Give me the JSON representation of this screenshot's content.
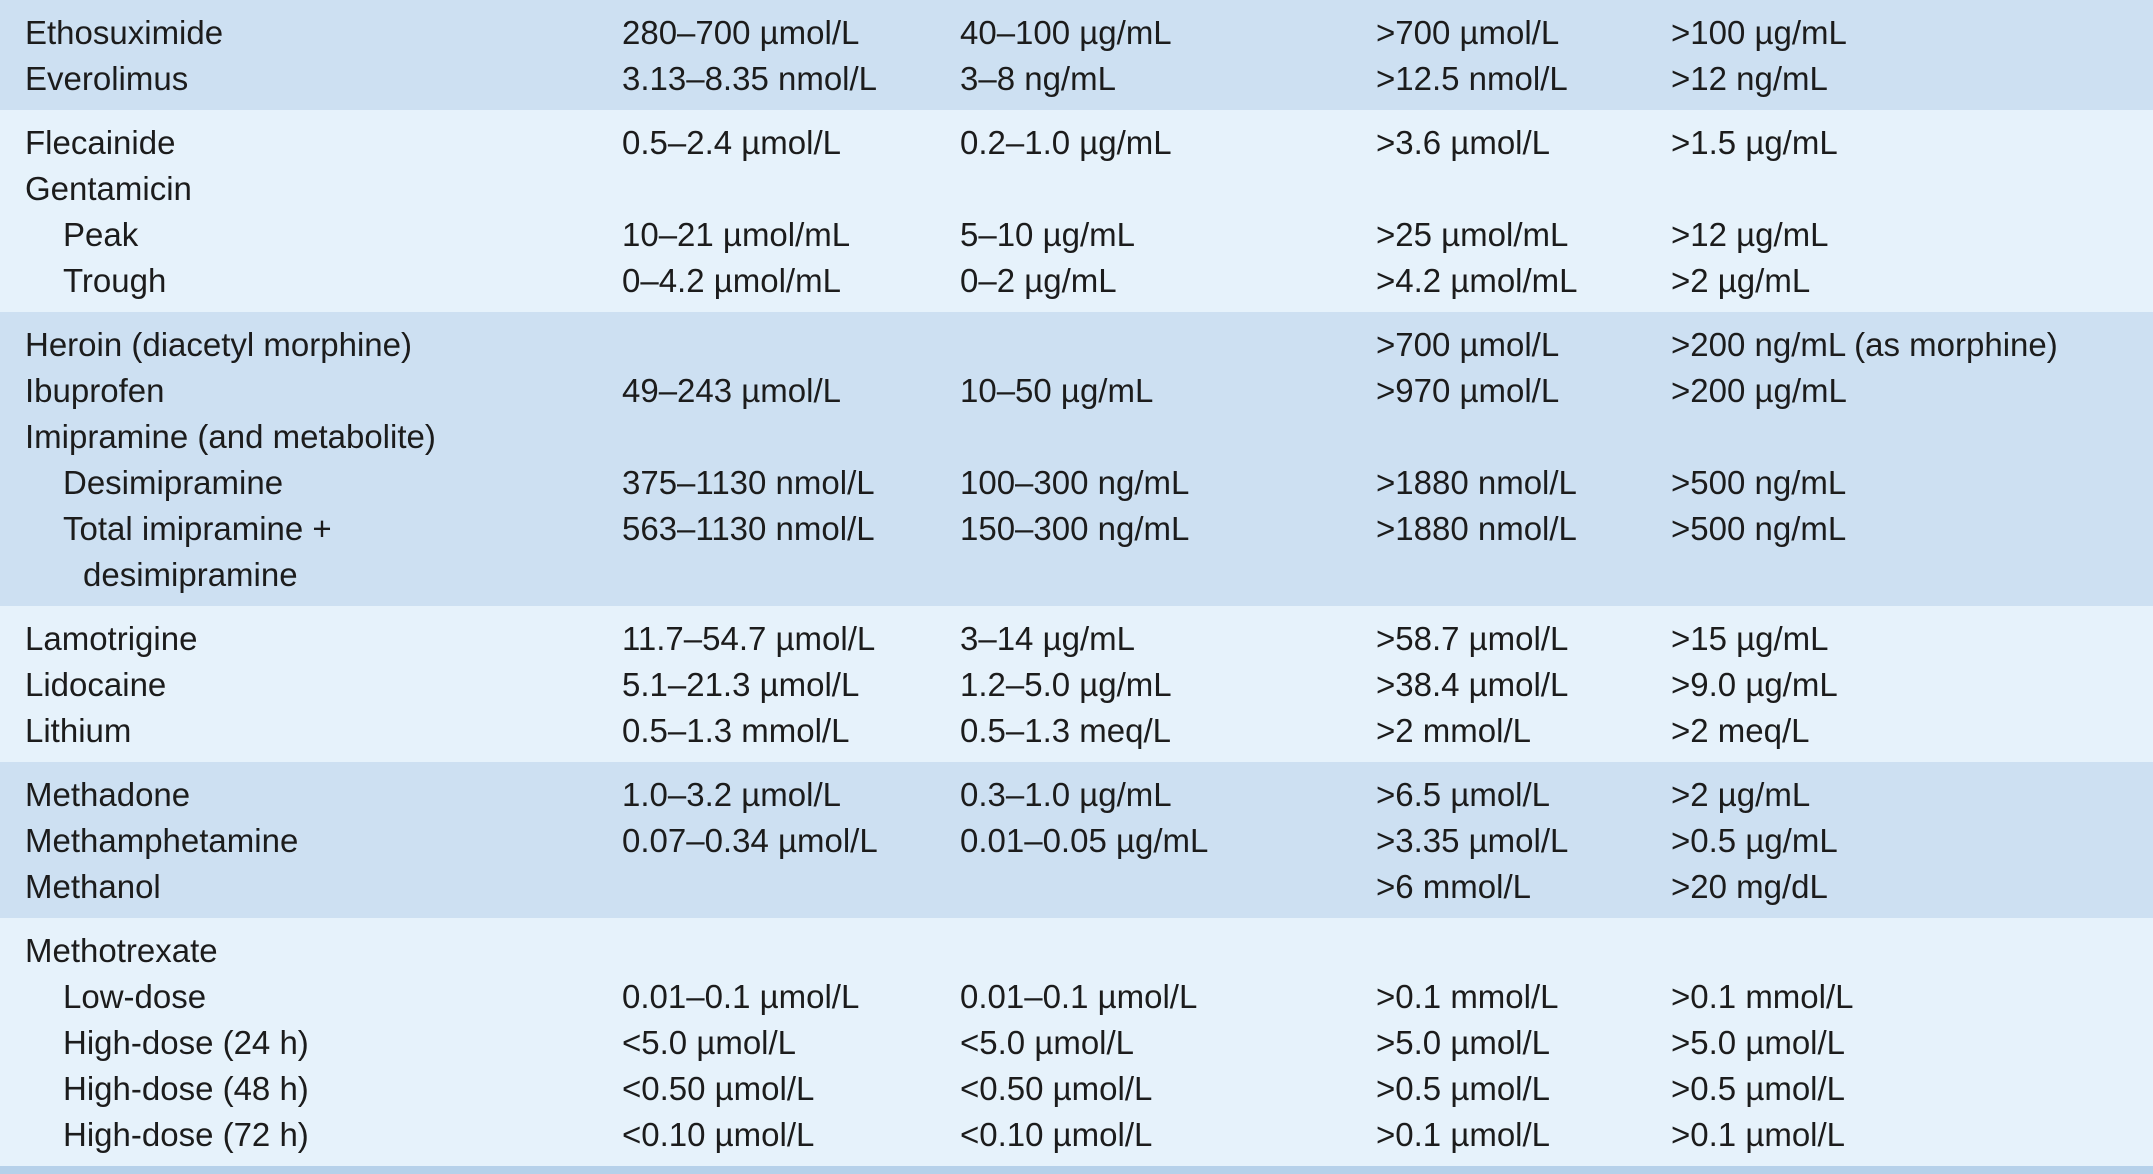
{
  "table": {
    "groups": [
      {
        "rows": [
          {
            "indent": 0,
            "cells": [
              "Ethosuximide",
              "280–700 µmol/L",
              "40–100 µg/mL",
              ">700 µmol/L",
              ">100 µg/mL"
            ]
          },
          {
            "indent": 0,
            "cells": [
              "Everolimus",
              "3.13–8.35 nmol/L",
              "3–8 ng/mL",
              ">12.5 nmol/L",
              ">12 ng/mL"
            ]
          }
        ]
      },
      {
        "rows": [
          {
            "indent": 0,
            "cells": [
              "Flecainide",
              "0.5–2.4 µmol/L",
              "0.2–1.0 µg/mL",
              ">3.6 µmol/L",
              ">1.5 µg/mL"
            ]
          },
          {
            "indent": 0,
            "cells": [
              "Gentamicin",
              null,
              null,
              null,
              null
            ]
          },
          {
            "indent": 1,
            "cells": [
              "Peak",
              "10–21 µmol/mL",
              "5–10 µg/mL",
              ">25 µmol/mL",
              ">12 µg/mL"
            ]
          },
          {
            "indent": 1,
            "cells": [
              "Trough",
              "0–4.2 µmol/mL",
              "0–2 µg/mL",
              ">4.2 µmol/mL",
              ">2 µg/mL"
            ]
          }
        ]
      },
      {
        "rows": [
          {
            "indent": 0,
            "cells": [
              "Heroin (diacetyl morphine)",
              null,
              null,
              ">700 µmol/L",
              ">200 ng/mL (as morphine)"
            ]
          },
          {
            "indent": 0,
            "cells": [
              "Ibuprofen",
              "49–243 µmol/L",
              "10–50 µg/mL",
              ">970 µmol/L",
              ">200 µg/mL"
            ]
          },
          {
            "indent": 0,
            "cells": [
              "Imipramine (and metabolite)",
              null,
              null,
              null,
              null
            ]
          },
          {
            "indent": 1,
            "cells": [
              "Desimipramine",
              "375–1130 nmol/L",
              "100–300 ng/mL",
              ">1880 nmol/L",
              ">500 ng/mL"
            ]
          },
          {
            "indent": 1,
            "cells": [
              [
                "Total imipramine +",
                "desimipramine"
              ],
              "563–1130 nmol/L",
              "150–300 ng/mL",
              ">1880 nmol/L",
              ">500 ng/mL"
            ]
          }
        ]
      },
      {
        "rows": [
          {
            "indent": 0,
            "cells": [
              "Lamotrigine",
              "11.7–54.7 µmol/L",
              "3–14 µg/mL",
              ">58.7 µmol/L",
              ">15 µg/mL"
            ]
          },
          {
            "indent": 0,
            "cells": [
              "Lidocaine",
              "5.1–21.3 µmol/L",
              "1.2–5.0 µg/mL",
              ">38.4 µmol/L",
              ">9.0 µg/mL"
            ]
          },
          {
            "indent": 0,
            "cells": [
              "Lithium",
              "0.5–1.3 mmol/L",
              "0.5–1.3 meq/L",
              ">2 mmol/L",
              ">2 meq/L"
            ]
          }
        ]
      },
      {
        "rows": [
          {
            "indent": 0,
            "cells": [
              "Methadone",
              "1.0–3.2 µmol/L",
              "0.3–1.0 µg/mL",
              ">6.5 µmol/L",
              ">2 µg/mL"
            ]
          },
          {
            "indent": 0,
            "cells": [
              "Methamphetamine",
              "0.07–0.34 µmol/L",
              "0.01–0.05 µg/mL",
              ">3.35 µmol/L",
              ">0.5 µg/mL"
            ]
          },
          {
            "indent": 0,
            "cells": [
              "Methanol",
              null,
              null,
              ">6 mmol/L",
              ">20 mg/dL"
            ]
          }
        ]
      },
      {
        "rows": [
          {
            "indent": 0,
            "cells": [
              "Methotrexate",
              null,
              null,
              null,
              null
            ]
          },
          {
            "indent": 1,
            "cells": [
              "Low-dose",
              "0.01–0.1 µmol/L",
              "0.01–0.1 µmol/L",
              ">0.1 mmol/L",
              ">0.1 mmol/L"
            ]
          },
          {
            "indent": 1,
            "cells": [
              "High-dose (24 h)",
              "<5.0 µmol/L",
              "<5.0 µmol/L",
              ">5.0 µmol/L",
              ">5.0 µmol/L"
            ]
          },
          {
            "indent": 1,
            "cells": [
              "High-dose (48 h)",
              "<0.50 µmol/L",
              "<0.50 µmol/L",
              ">0.5 µmol/L",
              ">0.5 µmol/L"
            ]
          },
          {
            "indent": 1,
            "cells": [
              "High-dose (72 h)",
              "<0.10 µmol/L",
              "<0.10 µmol/L",
              ">0.1 µmol/L",
              ">0.1 µmol/L"
            ]
          }
        ]
      }
    ]
  }
}
